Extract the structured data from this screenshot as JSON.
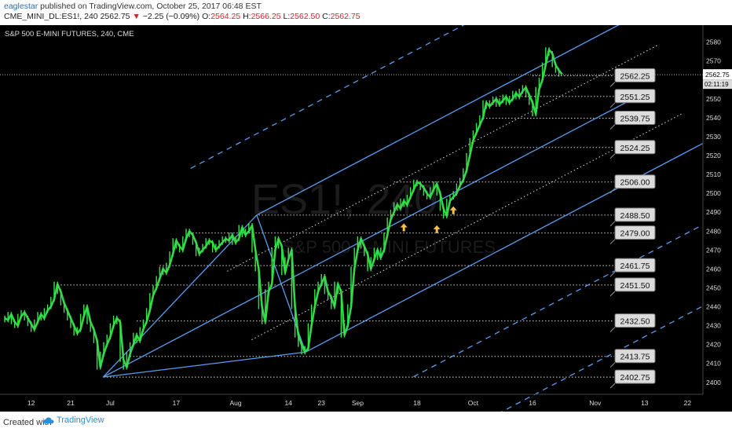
{
  "header": {
    "user": "eaglestar",
    "published": "published on TradingView.com, October 25, 2017 06:48 EST",
    "symbol": "CME_MINI_DL:ES1!, 240",
    "last": "2562.75",
    "change": "−2.25 (−0.09%)",
    "open_label": "O:",
    "open": "2564.25",
    "high_label": "H:",
    "high": "2566.25",
    "low_label": "L:",
    "low": "2562.50",
    "close_label": "C:",
    "close": "2562.75"
  },
  "footer": {
    "created": "Created with",
    "brand": "TradingView"
  },
  "colors": {
    "background": "#000000",
    "candles": "#35e24a",
    "channel": "#5a9ef0",
    "levels": "#ffffff",
    "arrows": "#f6c343",
    "labels_bg": "#dcdcdc",
    "axis_text": "#dddddd"
  },
  "chart_data": {
    "type": "line",
    "title": "S&P 500 E-MINI FUTURES, 240, CME",
    "watermark": "ES1!, 240",
    "watermark_sub": "S&P 500 E-MINI FUTURES",
    "ylim": [
      2397,
      2584
    ],
    "y_ticks": [
      2580,
      2570,
      2560,
      2550,
      2540,
      2530,
      2520,
      2510,
      2500,
      2490,
      2480,
      2470,
      2460,
      2450,
      2440,
      2430,
      2420,
      2410,
      2400
    ],
    "x_ticks": [
      "12",
      "21",
      "Jul",
      "17",
      "Aug",
      "14",
      "23",
      "Sep",
      "18",
      "Oct",
      "16",
      "Nov",
      "13",
      "22"
    ],
    "x_tick_index": [
      8,
      20,
      32,
      52,
      70,
      86,
      96,
      107,
      125,
      142,
      160,
      179,
      194,
      207
    ],
    "last_price": "2562.75",
    "countdown": "02:11:19",
    "price_series": [
      2434,
      2433,
      2436,
      2432,
      2430,
      2435,
      2437,
      2434,
      2431,
      2428,
      2432,
      2436,
      2434,
      2438,
      2440,
      2444,
      2452,
      2448,
      2442,
      2438,
      2434,
      2430,
      2426,
      2428,
      2435,
      2440,
      2432,
      2428,
      2422,
      2408,
      2415,
      2420,
      2424,
      2430,
      2434,
      2432,
      2412,
      2408,
      2415,
      2420,
      2425,
      2422,
      2428,
      2432,
      2438,
      2446,
      2450,
      2455,
      2460,
      2458,
      2462,
      2468,
      2475,
      2472,
      2470,
      2476,
      2480,
      2478,
      2474,
      2468,
      2470,
      2472,
      2475,
      2474,
      2470,
      2472,
      2474,
      2476,
      2475,
      2478,
      2474,
      2476,
      2482,
      2478,
      2480,
      2483,
      2470,
      2460,
      2440,
      2432,
      2448,
      2452,
      2470,
      2476,
      2472,
      2458,
      2465,
      2470,
      2440,
      2425,
      2420,
      2416,
      2418,
      2430,
      2440,
      2448,
      2452,
      2456,
      2448,
      2445,
      2440,
      2452,
      2448,
      2425,
      2430,
      2440,
      2460,
      2470,
      2476,
      2472,
      2468,
      2460,
      2465,
      2470,
      2466,
      2470,
      2478,
      2486,
      2490,
      2494,
      2492,
      2496,
      2494,
      2498,
      2502,
      2506,
      2505,
      2503,
      2500,
      2498,
      2502,
      2505,
      2500,
      2492,
      2488,
      2496,
      2498,
      2500,
      2504,
      2507,
      2512,
      2520,
      2528,
      2532,
      2536,
      2540,
      2548,
      2546,
      2548,
      2550,
      2547,
      2549,
      2551,
      2548,
      2550,
      2553,
      2551,
      2554,
      2556,
      2552,
      2548,
      2542,
      2555,
      2560,
      2568,
      2576,
      2574,
      2568,
      2565,
      2563
    ],
    "series": [
      {
        "values": [
          2402.75,
          2413.75,
          2432.5,
          2451.5,
          2461.75,
          2479.0,
          2488.5,
          2506.0,
          2524.25,
          2539.75,
          2551.25,
          2562.25
        ]
      }
    ],
    "levels": [
      {
        "value": 2402.75,
        "label": "2402.75",
        "from": 30
      },
      {
        "value": 2413.75,
        "label": "2413.75",
        "from": 38
      },
      {
        "value": 2432.5,
        "label": "2432.50",
        "from": 40
      },
      {
        "value": 2451.5,
        "label": "2451.50",
        "from": 17
      },
      {
        "value": 2461.75,
        "label": "2461.75",
        "from": 47
      },
      {
        "value": 2479.0,
        "label": "2479.00",
        "from": 56
      },
      {
        "value": 2488.5,
        "label": "2488.50",
        "from": 77
      },
      {
        "value": 2506.0,
        "label": "2506.00",
        "from": 118
      },
      {
        "value": 2524.25,
        "label": "2524.25",
        "from": 143
      },
      {
        "value": 2539.75,
        "label": "2539.75",
        "from": 145
      },
      {
        "value": 2551.25,
        "label": "2551.25",
        "from": 150
      },
      {
        "value": 2562.25,
        "label": "2562.25",
        "from": 160
      }
    ],
    "pitchfork": {
      "p0": [
        29.8,
        2402.75
      ],
      "p1": [
        76.4,
        2488.5
      ],
      "p2": [
        91.2,
        2416
      ]
    },
    "arrows": [
      {
        "x": 121,
        "y": 2482
      },
      {
        "x": 131,
        "y": 2481
      },
      {
        "x": 136,
        "y": 2491
      }
    ]
  }
}
